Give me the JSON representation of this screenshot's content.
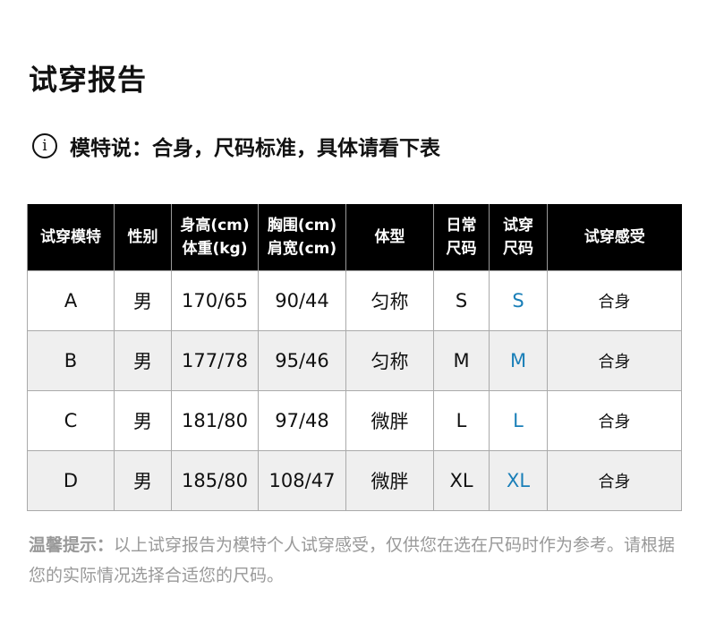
{
  "title": "试穿报告",
  "note": "模特说：合身，尺码标准，具体请看下表",
  "table": {
    "headers": [
      [
        "试穿模特"
      ],
      [
        "性别"
      ],
      [
        "身高(cm)",
        "体重(kg)"
      ],
      [
        "胸围(cm)",
        "肩宽(cm)"
      ],
      [
        "体型"
      ],
      [
        "日常",
        "尺码"
      ],
      [
        "试穿",
        "尺码"
      ],
      [
        "试穿感受"
      ]
    ],
    "rows": [
      [
        "A",
        "男",
        "170/65",
        "90/44",
        "匀称",
        "S",
        "S",
        "合身"
      ],
      [
        "B",
        "男",
        "177/78",
        "95/46",
        "匀称",
        "M",
        "M",
        "合身"
      ],
      [
        "C",
        "男",
        "181/80",
        "97/48",
        "微胖",
        "L",
        "L",
        "合身"
      ],
      [
        "D",
        "男",
        "185/80",
        "108/47",
        "微胖",
        "XL",
        "XL",
        "合身"
      ]
    ]
  },
  "footer": {
    "label": "温馨提示：",
    "text": "以上试穿报告为模特个人试穿感受，仅供您在选在尺码时作为参考。请根据您的实际情况选择合适您的尺码。"
  },
  "colors": {
    "header_bg": "#000000",
    "tried_size": "#1a7fb8",
    "alt_row": "#efefef"
  }
}
